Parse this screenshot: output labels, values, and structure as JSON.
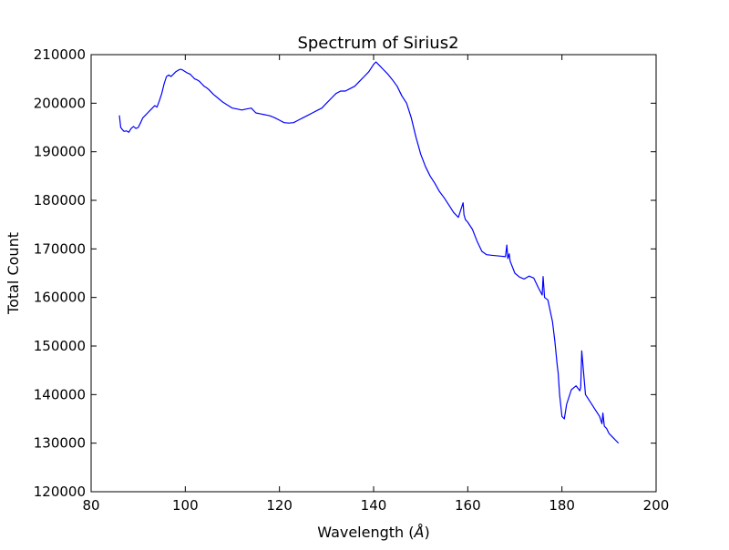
{
  "chart_data": {
    "type": "line",
    "title": "Spectrum of Sirius2",
    "xlabel": "Wavelength (",
    "xlabel_unit": "Å",
    "xlabel_close": ")",
    "ylabel": "Total Count",
    "xlim": [
      80,
      200
    ],
    "ylim": [
      120000,
      210000
    ],
    "xticks": [
      80,
      100,
      120,
      140,
      160,
      180,
      200
    ],
    "yticks": [
      120000,
      130000,
      140000,
      150000,
      160000,
      170000,
      180000,
      190000,
      200000,
      210000
    ],
    "grid": false,
    "line_color": "#0000ff",
    "series": [
      {
        "x": [
          86.0,
          86.3,
          86.7,
          87.0,
          87.5,
          88.0,
          88.5,
          89.0,
          89.5,
          90.0,
          90.5,
          91.0,
          91.5,
          92.0,
          92.5,
          93.0,
          93.5,
          94.0,
          94.5,
          95.0,
          95.5,
          96.0,
          96.5,
          97.0,
          97.5,
          98.0,
          98.5,
          99.0,
          99.5,
          100.0,
          100.5,
          101.0,
          101.5,
          102.0,
          102.5,
          103.0,
          103.5,
          104.0,
          104.5,
          105.0,
          106.0,
          107.0,
          108.0,
          109.0,
          110.0,
          111.0,
          112.0,
          113.0,
          114.0,
          115.0,
          116.0,
          117.0,
          118.0,
          119.0,
          120.0,
          121.0,
          122.0,
          123.0,
          124.0,
          125.0,
          126.0,
          127.0,
          128.0,
          129.0,
          130.0,
          131.0,
          132.0,
          133.0,
          134.0,
          135.0,
          136.0,
          137.0,
          138.0,
          139.0,
          140.0,
          140.5,
          141.0,
          141.5,
          142.0,
          143.0,
          144.0,
          145.0,
          146.0,
          147.0,
          148.0,
          149.0,
          150.0,
          151.0,
          152.0,
          153.0,
          154.0,
          155.0,
          156.0,
          157.0,
          158.0,
          159.0,
          159.2,
          159.5,
          160.0,
          161.0,
          162.0,
          163.0,
          164.0,
          165.0,
          166.0,
          167.0,
          168.0,
          168.3,
          168.5,
          168.8,
          169.0,
          170.0,
          171.0,
          172.0,
          173.0,
          174.0,
          175.0,
          175.8,
          176.0,
          176.3,
          177.0,
          178.0,
          178.5,
          179.0,
          179.2,
          179.5,
          180.0,
          180.5,
          181.0,
          182.0,
          183.0,
          183.8,
          184.0,
          184.2,
          185.0,
          186.0,
          187.0,
          188.0,
          188.5,
          188.7,
          189.0,
          189.5,
          190.0,
          190.5,
          191.0,
          191.5,
          192.0
        ],
        "y": [
          197500,
          195000,
          194500,
          194200,
          194300,
          194000,
          194800,
          195200,
          194800,
          195000,
          196000,
          197000,
          197500,
          198000,
          198500,
          199000,
          199500,
          199200,
          200500,
          202000,
          204000,
          205500,
          205800,
          205500,
          206000,
          206500,
          206800,
          207000,
          206800,
          206500,
          206200,
          206000,
          205500,
          205000,
          204800,
          204500,
          204000,
          203500,
          203200,
          202800,
          201800,
          201000,
          200200,
          199600,
          199000,
          198800,
          198600,
          198800,
          199000,
          198000,
          197800,
          197600,
          197400,
          197000,
          196500,
          196000,
          195900,
          196000,
          196500,
          197000,
          197500,
          198000,
          198500,
          199000,
          200000,
          201000,
          202000,
          202500,
          202500,
          203000,
          203500,
          204500,
          205500,
          206500,
          208000,
          208500,
          208000,
          207500,
          207000,
          206000,
          204800,
          203500,
          201500,
          200000,
          197000,
          193000,
          189500,
          187000,
          185000,
          183500,
          181800,
          180500,
          179000,
          177500,
          176500,
          179500,
          177000,
          176000,
          175500,
          174000,
          171500,
          169500,
          168800,
          168700,
          168600,
          168500,
          168400,
          170800,
          168000,
          169000,
          167500,
          165000,
          164200,
          163800,
          164400,
          164000,
          162000,
          160500,
          164300,
          160000,
          159500,
          155000,
          151000,
          146000,
          144500,
          140000,
          135500,
          135000,
          138000,
          141000,
          141800,
          140800,
          141500,
          149000,
          140000,
          138500,
          137000,
          135500,
          134000,
          136200,
          133500,
          133000,
          132000,
          131500,
          131000,
          130500,
          130000
        ]
      }
    ]
  }
}
